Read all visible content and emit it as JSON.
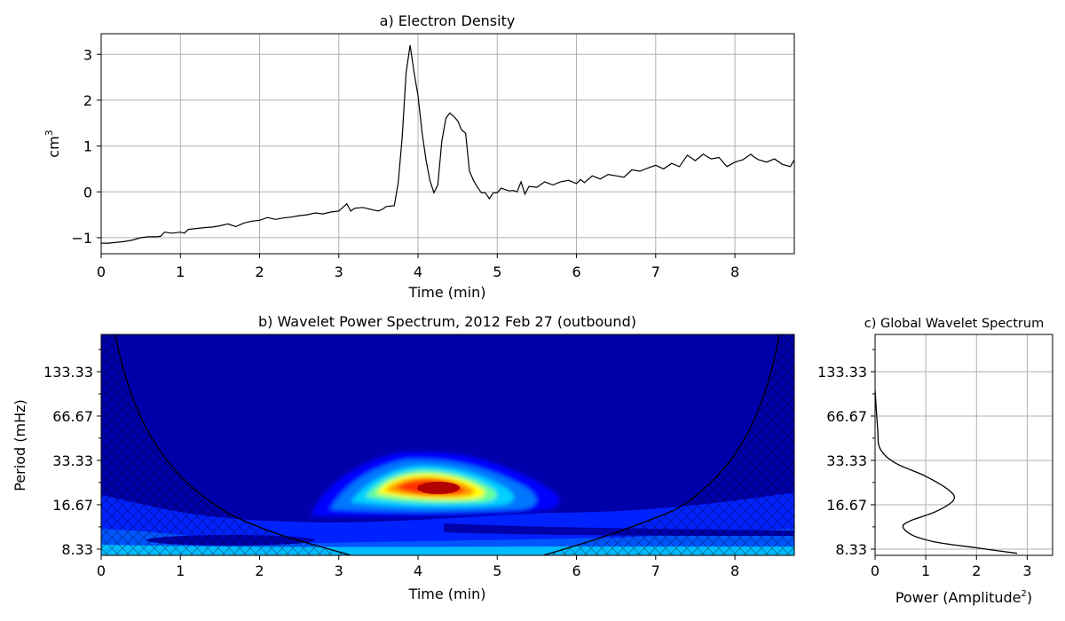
{
  "chart_data": [
    {
      "type": "line",
      "title": "a) Electron Density",
      "xlabel": "Time (min)",
      "ylabel": "cm",
      "ylabel_superscript": "3",
      "xlim": [
        0,
        8.75
      ],
      "ylim": [
        -1.35,
        3.45
      ],
      "grid": true,
      "xticks": [
        0,
        1,
        2,
        3,
        4,
        5,
        6,
        7,
        8
      ],
      "xtick_labels": [
        "0",
        "1",
        "2",
        "3",
        "4",
        "5",
        "6",
        "7",
        "8"
      ],
      "yticks": [
        -1,
        0,
        1,
        2,
        3
      ],
      "ytick_labels": [
        "−1",
        "0",
        "1",
        "2",
        "3"
      ],
      "color": "#000000",
      "x": [
        0.0,
        0.1,
        0.2,
        0.3,
        0.4,
        0.5,
        0.6,
        0.7,
        0.75,
        0.8,
        0.9,
        1.0,
        1.05,
        1.1,
        1.2,
        1.3,
        1.4,
        1.5,
        1.6,
        1.7,
        1.8,
        1.9,
        2.0,
        2.1,
        2.2,
        2.3,
        2.4,
        2.5,
        2.6,
        2.7,
        2.8,
        2.9,
        3.0,
        3.05,
        3.1,
        3.15,
        3.2,
        3.3,
        3.4,
        3.5,
        3.55,
        3.6,
        3.7,
        3.75,
        3.8,
        3.85,
        3.9,
        3.95,
        4.0,
        4.05,
        4.1,
        4.15,
        4.2,
        4.25,
        4.3,
        4.35,
        4.4,
        4.45,
        4.5,
        4.55,
        4.6,
        4.65,
        4.7,
        4.75,
        4.8,
        4.85,
        4.9,
        4.95,
        5.0,
        5.05,
        5.1,
        5.15,
        5.2,
        5.25,
        5.3,
        5.35,
        5.4,
        5.5,
        5.6,
        5.7,
        5.8,
        5.9,
        6.0,
        6.05,
        6.1,
        6.2,
        6.3,
        6.4,
        6.5,
        6.6,
        6.7,
        6.8,
        6.9,
        7.0,
        7.1,
        7.2,
        7.3,
        7.4,
        7.5,
        7.6,
        7.7,
        7.8,
        7.9,
        8.0,
        8.1,
        8.2,
        8.25,
        8.3,
        8.4,
        8.5,
        8.6,
        8.7,
        8.75
      ],
      "values": [
        -1.12,
        -1.12,
        -1.1,
        -1.08,
        -1.05,
        -1.0,
        -0.98,
        -0.98,
        -0.97,
        -0.88,
        -0.9,
        -0.88,
        -0.9,
        -0.82,
        -0.8,
        -0.78,
        -0.77,
        -0.74,
        -0.7,
        -0.76,
        -0.68,
        -0.64,
        -0.62,
        -0.56,
        -0.6,
        -0.57,
        -0.55,
        -0.52,
        -0.5,
        -0.46,
        -0.48,
        -0.44,
        -0.42,
        -0.34,
        -0.26,
        -0.42,
        -0.36,
        -0.34,
        -0.38,
        -0.42,
        -0.38,
        -0.32,
        -0.3,
        0.2,
        1.2,
        2.6,
        3.2,
        2.6,
        2.1,
        1.3,
        0.7,
        0.25,
        -0.02,
        0.15,
        1.1,
        1.6,
        1.72,
        1.65,
        1.55,
        1.35,
        1.28,
        0.45,
        0.25,
        0.1,
        -0.02,
        -0.02,
        -0.15,
        -0.02,
        -0.02,
        0.08,
        0.05,
        0.02,
        0.03,
        0.0,
        0.22,
        -0.05,
        0.12,
        0.1,
        0.22,
        0.15,
        0.22,
        0.25,
        0.18,
        0.27,
        0.2,
        0.35,
        0.28,
        0.38,
        0.35,
        0.32,
        0.48,
        0.45,
        0.52,
        0.58,
        0.5,
        0.62,
        0.55,
        0.8,
        0.68,
        0.82,
        0.72,
        0.75,
        0.55,
        0.65,
        0.7,
        0.82,
        0.75,
        0.7,
        0.65,
        0.72,
        0.6,
        0.55,
        0.7
      ]
    },
    {
      "type": "heatmap",
      "title": "b) Wavelet Power Spectrum, 2012 Feb 27 (outbound)",
      "xlabel": "Time (min)",
      "ylabel": "Period (mHz)",
      "xlim": [
        0,
        8.75
      ],
      "xticks": [
        0,
        1,
        2,
        3,
        4,
        5,
        6,
        7,
        8
      ],
      "xtick_labels": [
        "0",
        "1",
        "2",
        "3",
        "4",
        "5",
        "6",
        "7",
        "8"
      ],
      "ytick_labels": [
        "133.33",
        "66.67",
        "33.33",
        "16.67",
        "8.33"
      ],
      "yscale": "log",
      "colormap": "jet",
      "background_color": "#0000aa",
      "peak": {
        "time_min": 4.2,
        "period_mhz": 21,
        "color": "#b30000"
      },
      "cone_of_influence": {
        "hatched": true,
        "line_color": "#000000"
      },
      "contour_colors": [
        "#0000aa",
        "#0000ff",
        "#0066ff",
        "#00ccff",
        "#66ff99",
        "#ffff00",
        "#ff9900",
        "#ff3300",
        "#b30000"
      ]
    },
    {
      "type": "line",
      "title": "c) Global Wavelet Spectrum",
      "xlabel": "Power (Amplitude",
      "xlabel_superscript": "2",
      "xlabel_suffix": ")",
      "xlim": [
        0,
        3.5
      ],
      "xticks": [
        0,
        1,
        2,
        3
      ],
      "xtick_labels": [
        "0",
        "1",
        "2",
        "3"
      ],
      "ytick_labels": [
        "133.33",
        "66.67",
        "33.33",
        "16.67",
        "8.33"
      ],
      "yscale": "log",
      "grid": true,
      "color": "#000000",
      "profile": [
        {
          "power": 0.0,
          "period_mhz": 100
        },
        {
          "power": 0.05,
          "period_mhz": 55
        },
        {
          "power": 0.1,
          "period_mhz": 40
        },
        {
          "power": 0.4,
          "period_mhz": 32
        },
        {
          "power": 1.0,
          "period_mhz": 26
        },
        {
          "power": 1.45,
          "period_mhz": 21
        },
        {
          "power": 1.55,
          "period_mhz": 18
        },
        {
          "power": 1.2,
          "period_mhz": 15
        },
        {
          "power": 0.7,
          "period_mhz": 13
        },
        {
          "power": 0.55,
          "period_mhz": 11.8
        },
        {
          "power": 0.75,
          "period_mhz": 10.3
        },
        {
          "power": 1.2,
          "period_mhz": 9.3
        },
        {
          "power": 2.0,
          "period_mhz": 8.5
        },
        {
          "power": 2.8,
          "period_mhz": 7.8
        }
      ]
    }
  ]
}
